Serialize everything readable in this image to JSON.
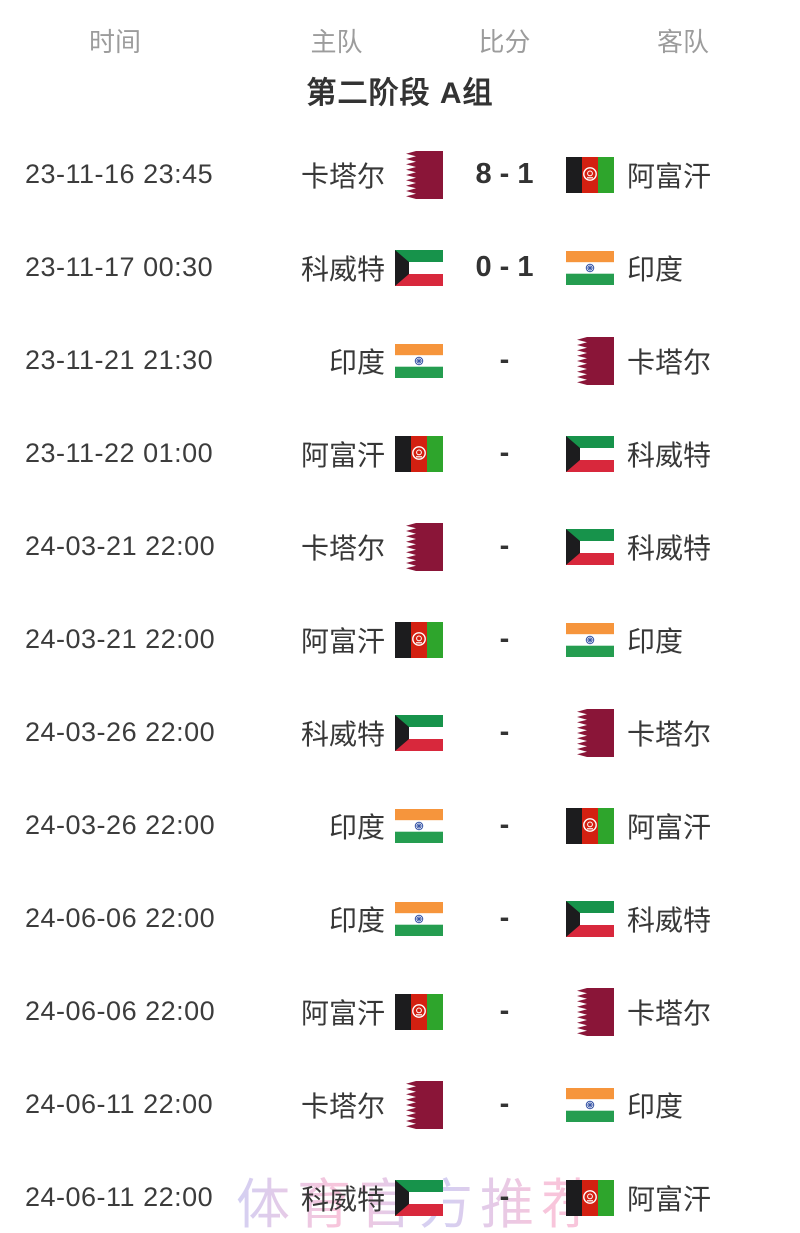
{
  "header": {
    "columns": [
      "时间",
      "主队",
      "比分",
      "客队"
    ]
  },
  "section": {
    "title": "第二阶段 A组"
  },
  "rows": [
    {
      "time": "23-11-16 23:45",
      "home": {
        "name": "卡塔尔",
        "flag": "qatar"
      },
      "score": "8 - 1",
      "away": {
        "name": "阿富汗",
        "flag": "afghanistan"
      }
    },
    {
      "time": "23-11-17 00:30",
      "home": {
        "name": "科威特",
        "flag": "kuwait"
      },
      "score": "0 - 1",
      "away": {
        "name": "印度",
        "flag": "india"
      }
    },
    {
      "time": "23-11-21 21:30",
      "home": {
        "name": "印度",
        "flag": "india"
      },
      "score": "-",
      "away": {
        "name": "卡塔尔",
        "flag": "qatar"
      }
    },
    {
      "time": "23-11-22 01:00",
      "home": {
        "name": "阿富汗",
        "flag": "afghanistan"
      },
      "score": "-",
      "away": {
        "name": "科威特",
        "flag": "kuwait"
      }
    },
    {
      "time": "24-03-21 22:00",
      "home": {
        "name": "卡塔尔",
        "flag": "qatar"
      },
      "score": "-",
      "away": {
        "name": "科威特",
        "flag": "kuwait"
      }
    },
    {
      "time": "24-03-21 22:00",
      "home": {
        "name": "阿富汗",
        "flag": "afghanistan"
      },
      "score": "-",
      "away": {
        "name": "印度",
        "flag": "india"
      }
    },
    {
      "time": "24-03-26 22:00",
      "home": {
        "name": "科威特",
        "flag": "kuwait"
      },
      "score": "-",
      "away": {
        "name": "卡塔尔",
        "flag": "qatar"
      }
    },
    {
      "time": "24-03-26 22:00",
      "home": {
        "name": "印度",
        "flag": "india"
      },
      "score": "-",
      "away": {
        "name": "阿富汗",
        "flag": "afghanistan"
      }
    },
    {
      "time": "24-06-06 22:00",
      "home": {
        "name": "印度",
        "flag": "india"
      },
      "score": "-",
      "away": {
        "name": "科威特",
        "flag": "kuwait"
      }
    },
    {
      "time": "24-06-06 22:00",
      "home": {
        "name": "阿富汗",
        "flag": "afghanistan"
      },
      "score": "-",
      "away": {
        "name": "卡塔尔",
        "flag": "qatar"
      }
    },
    {
      "time": "24-06-11 22:00",
      "home": {
        "name": "卡塔尔",
        "flag": "qatar"
      },
      "score": "-",
      "away": {
        "name": "印度",
        "flag": "india"
      }
    },
    {
      "time": "24-06-11 22:00",
      "home": {
        "name": "科威特",
        "flag": "kuwait"
      },
      "score": "-",
      "away": {
        "name": "阿富汗",
        "flag": "afghanistan"
      }
    }
  ],
  "watermark": {
    "text": "体育官方推荐"
  },
  "colors": {
    "qatar_maroon": "#8a1538",
    "flag_black": "#1c1c1e",
    "flag_white": "#ffffff",
    "afghan_red": "#d32011",
    "afghan_green": "#2ea52c",
    "kuwait_green": "#17934b",
    "kuwait_red": "#d8283c",
    "india_saffron": "#f6953c",
    "india_green": "#259d50",
    "chakra_blue": "#3a57a7",
    "watermark_lavender": "#b8b4ec",
    "watermark_pink": "#f4a3c6"
  }
}
